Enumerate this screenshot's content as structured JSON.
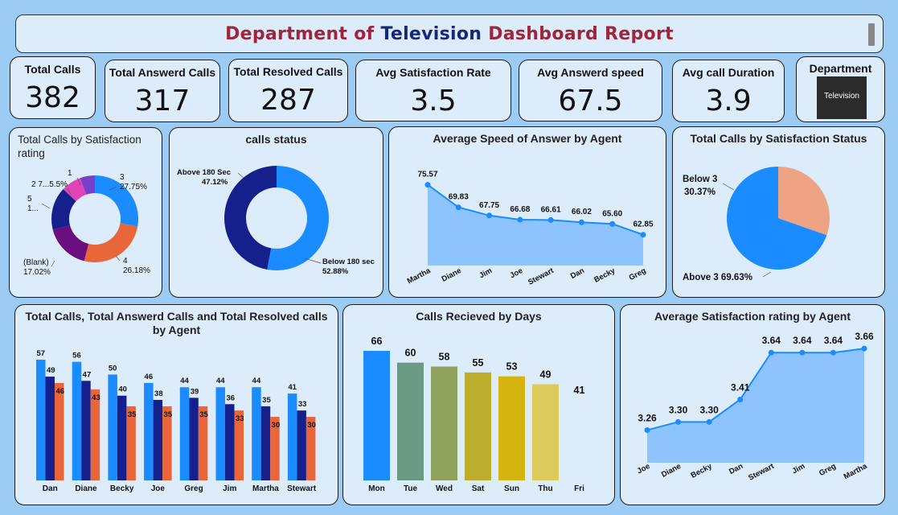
{
  "header": {
    "title_part1": "Department of",
    "title_part2": "Television",
    "title_part3": "Dashboard Report"
  },
  "kpis": [
    {
      "label": "Total Calls",
      "value": "382"
    },
    {
      "label": "Total Answerd Calls",
      "value": "317"
    },
    {
      "label": "Total Resolved Calls",
      "value": "287"
    },
    {
      "label": "Avg Satisfaction Rate",
      "value": "3.5"
    },
    {
      "label": "Avg Answerd speed",
      "value": "67.5"
    },
    {
      "label": "Avg call Duration",
      "value": "3.9"
    }
  ],
  "department": {
    "label": "Department",
    "value": "Television"
  },
  "colors": {
    "blue": "#1a8cff",
    "navy": "#15208c",
    "orange": "#e8663a",
    "area": "#7fbcff",
    "background": "#9ccbf3",
    "card": "#dcecfb"
  },
  "chart_data": [
    {
      "id": "satisfaction_rating",
      "type": "pie",
      "title": "Total Calls by Satisfaction rating",
      "labels": [
        "3",
        "4",
        "(Blank)",
        "5",
        "2 7...",
        "1"
      ],
      "values": [
        27.75,
        26.18,
        17.02,
        16.0,
        7.5,
        5.5
      ],
      "data_labels": [
        {
          "name": "3",
          "pct": "27.75%"
        },
        {
          "name": "4",
          "pct": "26.18%"
        },
        {
          "name": "(Blank)",
          "pct": "17.02%"
        },
        {
          "name": "5",
          "pct": "1..."
        },
        {
          "name": "2 7...",
          "pct": "5.5%"
        },
        {
          "name": "1",
          "pct": ""
        }
      ],
      "colors": [
        "#1a8cff",
        "#e8663a",
        "#6b0f80",
        "#15208c",
        "#e244b7",
        "#7a3fc8"
      ]
    },
    {
      "id": "calls_status",
      "type": "pie",
      "title": "calls status",
      "labels": [
        "Below 180 sec",
        "Above 180 Sec"
      ],
      "values": [
        52.88,
        47.12
      ],
      "data_labels": [
        {
          "name": "Below 180 sec",
          "pct": "52.88%"
        },
        {
          "name": "Above 180 Sec",
          "pct": "47.12%"
        }
      ],
      "colors": [
        "#1a8cff",
        "#15208c"
      ]
    },
    {
      "id": "speed_by_agent",
      "type": "area",
      "title": "Average Speed of Answer by Agent",
      "categories": [
        "Martha",
        "Diane",
        "Jim",
        "Joe",
        "Stewart",
        "Dan",
        "Becky",
        "Greg"
      ],
      "values": [
        75.57,
        69.83,
        67.75,
        66.68,
        66.61,
        66.02,
        65.6,
        62.85
      ],
      "ylim": [
        55,
        80
      ]
    },
    {
      "id": "satisfaction_status",
      "type": "pie",
      "title": "Total Calls by Satisfaction Status",
      "labels": [
        "Above 3",
        "Below 3"
      ],
      "values": [
        69.63,
        30.37
      ],
      "data_labels": [
        {
          "name": "Above 3",
          "pct": "69.63%"
        },
        {
          "name": "Below 3",
          "pct": "30.37%"
        }
      ],
      "colors": [
        "#1a8cff",
        "#eea384"
      ]
    },
    {
      "id": "calls_by_agent",
      "type": "bar",
      "title": "Total Calls, Total Answerd Calls and Total Resolved calls by Agent",
      "categories": [
        "Dan",
        "Diane",
        "Becky",
        "Joe",
        "Greg",
        "Jim",
        "Martha",
        "Stewart"
      ],
      "series": [
        {
          "values": [
            57,
            56,
            50,
            46,
            44,
            44,
            44,
            41
          ]
        },
        {
          "values": [
            49,
            47,
            40,
            38,
            39,
            36,
            35,
            33
          ]
        },
        {
          "values": [
            46,
            43,
            35,
            35,
            35,
            33,
            30,
            30
          ]
        }
      ],
      "colors": [
        "#1a8cff",
        "#15208c",
        "#e8663a"
      ],
      "ylim": [
        0,
        62
      ]
    },
    {
      "id": "calls_by_days",
      "type": "bar",
      "title": "Calls Recieved by Days",
      "categories": [
        "Mon",
        "Tue",
        "Wed",
        "Sat",
        "Sun",
        "Thu",
        "Fri"
      ],
      "values": [
        66,
        60,
        58,
        55,
        53,
        49,
        41
      ],
      "colors": [
        "#1a8cff",
        "#6a9a84",
        "#8fa35e",
        "#bcae2c",
        "#d6b410",
        "#dccb5a",
        "#dcecfb"
      ],
      "ylim": [
        0,
        70
      ]
    },
    {
      "id": "satisfaction_by_agent",
      "type": "area",
      "title": "Average Satisfaction rating by Agent",
      "categories": [
        "Joe",
        "Diane",
        "Becky",
        "Dan",
        "Stewart",
        "Jim",
        "Greg",
        "Martha"
      ],
      "values": [
        3.26,
        3.3,
        3.3,
        3.41,
        3.64,
        3.64,
        3.64,
        3.66
      ],
      "value_labels": [
        "3.26",
        "3.30",
        "3.30",
        "3.41",
        "3.64",
        "3.64",
        "3.64",
        "3.66"
      ],
      "ylim": [
        3.1,
        3.7
      ]
    }
  ]
}
